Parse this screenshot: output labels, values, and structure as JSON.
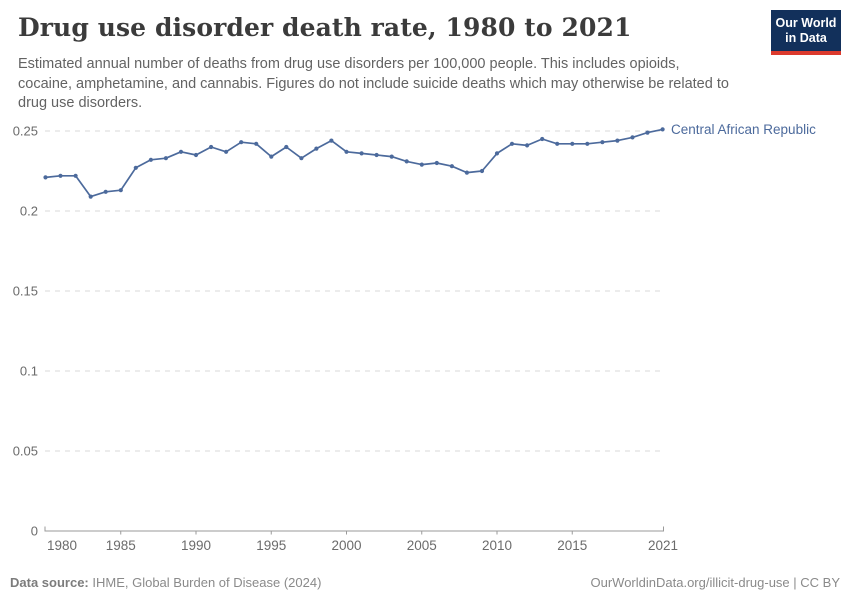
{
  "header": {
    "title": "Drug use disorder death rate, 1980 to 2021",
    "subtitle_lines": [
      "Estimated annual number of deaths from drug use disorders per 100,000 people. This includes opioids,",
      "cocaine, amphetamine, and cannabis. Figures do not include suicide deaths which may otherwise be related to",
      "drug use disorders."
    ],
    "logo": {
      "line1": "Our World",
      "line2": "in Data",
      "bg_color": "#12305b",
      "accent_color": "#dc3a2d"
    }
  },
  "chart_data": {
    "type": "line",
    "title": "Drug use disorder death rate, 1980 to 2021",
    "xlabel": "",
    "ylabel": "",
    "xlim": [
      1980,
      2021
    ],
    "ylim": [
      0,
      0.25
    ],
    "x_ticks": [
      1980,
      1985,
      1990,
      1995,
      2000,
      2005,
      2010,
      2015,
      2021
    ],
    "y_ticks": [
      0,
      0.05,
      0.1,
      0.15,
      0.2,
      0.25
    ],
    "grid": "horizontal-dashed",
    "legend_position": "end-of-line-label",
    "series": [
      {
        "name": "Central African Republic",
        "color": "#4c6a9c",
        "x": [
          1980,
          1981,
          1982,
          1983,
          1984,
          1985,
          1986,
          1987,
          1988,
          1989,
          1990,
          1991,
          1992,
          1993,
          1994,
          1995,
          1996,
          1997,
          1998,
          1999,
          2000,
          2001,
          2002,
          2003,
          2004,
          2005,
          2006,
          2007,
          2008,
          2009,
          2010,
          2011,
          2012,
          2013,
          2014,
          2015,
          2016,
          2017,
          2018,
          2019,
          2020,
          2021
        ],
        "values": [
          0.221,
          0.222,
          0.222,
          0.209,
          0.212,
          0.213,
          0.227,
          0.232,
          0.233,
          0.237,
          0.235,
          0.24,
          0.237,
          0.243,
          0.242,
          0.234,
          0.24,
          0.233,
          0.239,
          0.244,
          0.237,
          0.236,
          0.235,
          0.234,
          0.231,
          0.229,
          0.23,
          0.228,
          0.224,
          0.225,
          0.236,
          0.242,
          0.241,
          0.245,
          0.242,
          0.242,
          0.242,
          0.243,
          0.244,
          0.246,
          0.249,
          0.251
        ]
      }
    ]
  },
  "footer": {
    "source_label": "Data source:",
    "source_text": " IHME, Global Burden of Disease (2024)",
    "credit": "OurWorldinData.org/illicit-drug-use | CC BY"
  },
  "colors": {
    "title": "#3b3b3b",
    "subtitle": "#636363",
    "gridline": "#d9d9d9",
    "axis": "#9a9a9a",
    "tick_label": "#6b6b6b",
    "line": "#4c6a9c",
    "footer_text": "#8a8a8a"
  }
}
